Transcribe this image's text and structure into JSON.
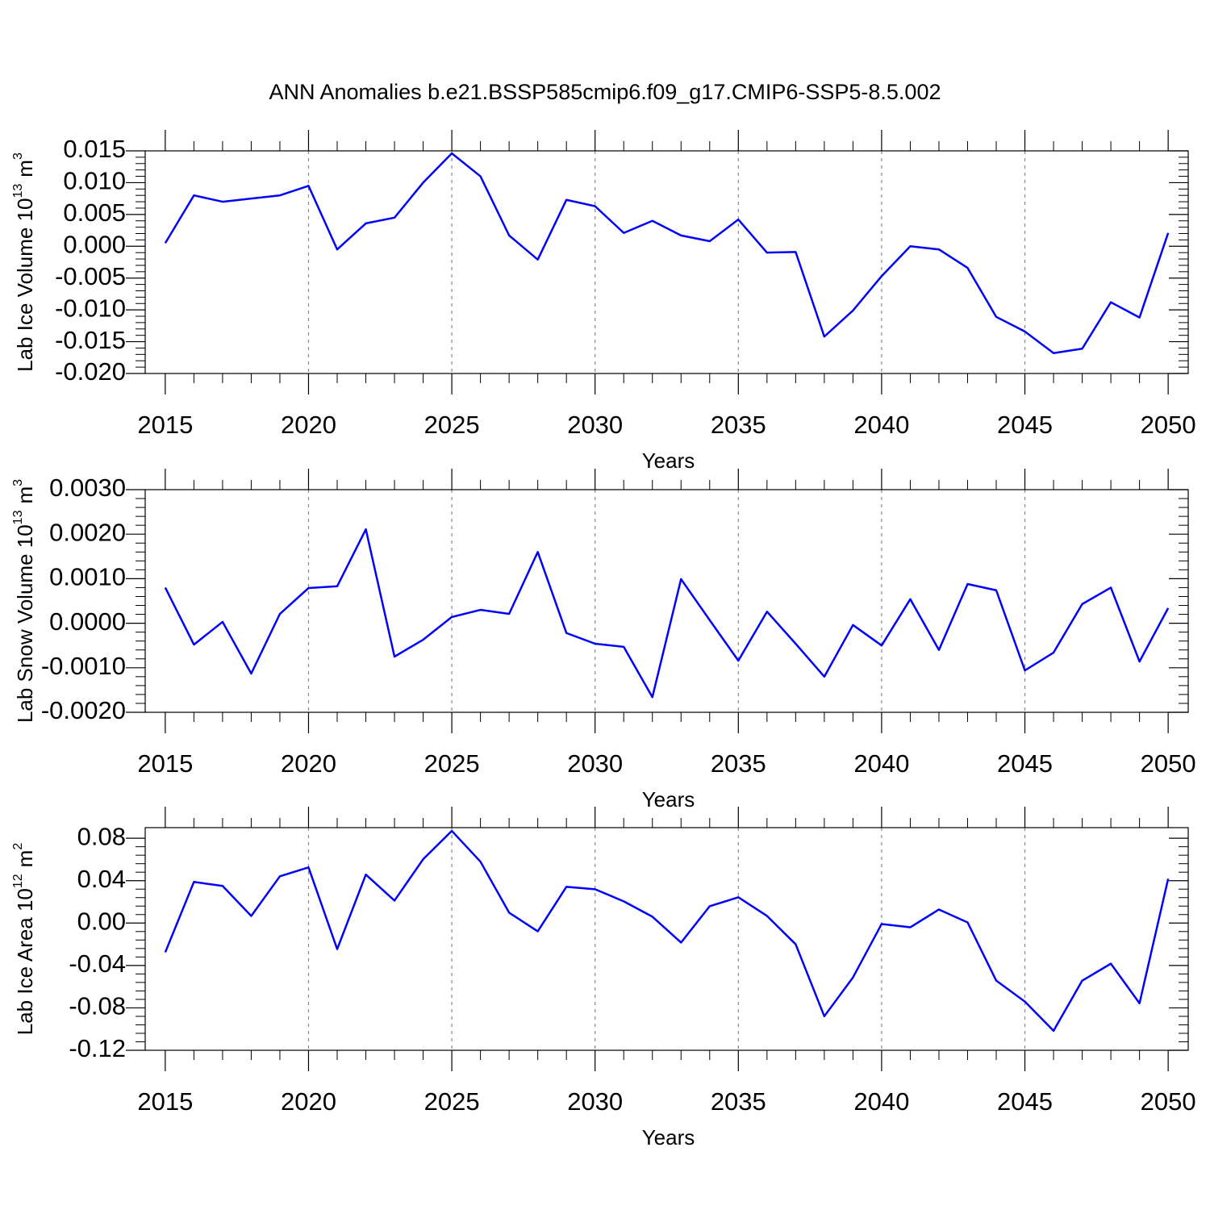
{
  "title": "ANN Anomalies b.e21.BSSP585cmip6.f09_g17.CMIP6-SSP5-8.5.002",
  "chart_data": [
    {
      "type": "line",
      "xlabel": "Years",
      "ylabel": {
        "base": "Lab Ice Volume 10",
        "power": "13",
        "unit": "m",
        "unit_power": "3"
      },
      "x": [
        2015,
        2016,
        2017,
        2018,
        2019,
        2020,
        2021,
        2022,
        2023,
        2024,
        2025,
        2026,
        2027,
        2028,
        2029,
        2030,
        2031,
        2032,
        2033,
        2034,
        2035,
        2036,
        2037,
        2038,
        2039,
        2040,
        2041,
        2042,
        2043,
        2044,
        2045,
        2046,
        2047,
        2048,
        2049,
        2050
      ],
      "series": [
        {
          "color": "#0000ff",
          "values": [
            0.0005,
            0.008,
            0.007,
            0.0075,
            0.008,
            0.0095,
            -0.0005,
            0.0036,
            0.0045,
            0.01,
            0.0146,
            0.011,
            0.0017,
            -0.0021,
            0.0073,
            0.0063,
            0.0021,
            0.004,
            0.0017,
            0.0008,
            0.0042,
            -0.001,
            -0.0009,
            -0.0142,
            -0.0101,
            -0.0047,
            0.0,
            -0.0005,
            -0.0034,
            -0.0111,
            -0.0134,
            -0.0168,
            -0.0161,
            -0.0088,
            -0.0112,
            0.0021
          ]
        }
      ],
      "xlim": [
        2014.3,
        2050.7
      ],
      "xticks": [
        2015,
        2020,
        2025,
        2030,
        2035,
        2040,
        2045,
        2050
      ],
      "ylim": [
        -0.02,
        0.015
      ],
      "yticks": [
        {
          "value": -0.02,
          "label": "-0.020"
        },
        {
          "value": -0.015,
          "label": "-0.015"
        },
        {
          "value": -0.01,
          "label": "-0.010"
        },
        {
          "value": -0.005,
          "label": "-0.005"
        },
        {
          "value": 0,
          "label": "0.000"
        },
        {
          "value": 0.005,
          "label": "0.005"
        },
        {
          "value": 0.01,
          "label": "0.010"
        },
        {
          "value": 0.015,
          "label": "0.015"
        }
      ],
      "grid": "x"
    },
    {
      "type": "line",
      "xlabel": "Years",
      "ylabel": {
        "base": "Lab Snow Volume 10",
        "power": "13",
        "unit": "m",
        "unit_power": "3"
      },
      "x": [
        2015,
        2016,
        2017,
        2018,
        2019,
        2020,
        2021,
        2022,
        2023,
        2024,
        2025,
        2026,
        2027,
        2028,
        2029,
        2030,
        2031,
        2032,
        2033,
        2034,
        2035,
        2036,
        2037,
        2038,
        2039,
        2040,
        2041,
        2042,
        2043,
        2044,
        2045,
        2046,
        2047,
        2048,
        2049,
        2050
      ],
      "series": [
        {
          "color": "#0000ff",
          "values": [
            0.0008,
            -0.00048,
            3e-05,
            -0.00113,
            0.00021,
            0.00079,
            0.00083,
            0.00211,
            -0.00075,
            -0.00037,
            0.00014,
            0.0003,
            0.00021,
            0.0016,
            -0.00022,
            -0.00046,
            -0.00053,
            -0.00166,
            0.00099,
            7e-05,
            -0.00084,
            0.00026,
            -0.00046,
            -0.0012,
            -4e-05,
            -0.0005,
            0.00054,
            -0.0006,
            0.00088,
            0.00074,
            -0.00106,
            -0.00066,
            0.00043,
            0.0008,
            -0.00086,
            0.00034
          ]
        }
      ],
      "xlim": [
        2014.3,
        2050.7
      ],
      "xticks": [
        2015,
        2020,
        2025,
        2030,
        2035,
        2040,
        2045,
        2050
      ],
      "ylim": [
        -0.002,
        0.003
      ],
      "yticks": [
        {
          "value": -0.002,
          "label": "-0.0020"
        },
        {
          "value": -0.001,
          "label": "-0.0010"
        },
        {
          "value": 0,
          "label": "0.0000"
        },
        {
          "value": 0.001,
          "label": "0.0010"
        },
        {
          "value": 0.002,
          "label": "0.0020"
        },
        {
          "value": 0.003,
          "label": "0.0030"
        }
      ],
      "grid": "x"
    },
    {
      "type": "line",
      "xlabel": "Years",
      "ylabel": {
        "base": "Lab Ice Area 10",
        "power": "12",
        "unit": "m",
        "unit_power": "2"
      },
      "x": [
        2015,
        2016,
        2017,
        2018,
        2019,
        2020,
        2021,
        2022,
        2023,
        2024,
        2025,
        2026,
        2027,
        2028,
        2029,
        2030,
        2031,
        2032,
        2033,
        2034,
        2035,
        2036,
        2037,
        2038,
        2039,
        2040,
        2041,
        2042,
        2043,
        2044,
        2045,
        2046,
        2047,
        2048,
        2049,
        2050
      ],
      "series": [
        {
          "color": "#0000ff",
          "values": [
            -0.0276,
            0.0388,
            0.035,
            0.0067,
            0.0441,
            0.0525,
            -0.0246,
            0.0457,
            0.0212,
            0.0602,
            0.0869,
            0.0579,
            0.0098,
            -0.0078,
            0.0342,
            0.0319,
            0.0205,
            0.006,
            -0.0184,
            0.0159,
            0.0243,
            0.0067,
            -0.02,
            -0.0879,
            -0.0513,
            -0.0009,
            -0.004,
            0.0128,
            0.0006,
            -0.0543,
            -0.0741,
            -0.1016,
            -0.0543,
            -0.0383,
            -0.0757,
            0.0418
          ]
        }
      ],
      "xlim": [
        2014.3,
        2050.7
      ],
      "xticks": [
        2015,
        2020,
        2025,
        2030,
        2035,
        2040,
        2045,
        2050
      ],
      "ylim": [
        -0.12,
        0.09
      ],
      "yticks": [
        {
          "value": -0.12,
          "label": "-0.12"
        },
        {
          "value": -0.08,
          "label": "-0.08"
        },
        {
          "value": -0.04,
          "label": "-0.04"
        },
        {
          "value": 0,
          "label": "0.00"
        },
        {
          "value": 0.04,
          "label": "0.04"
        },
        {
          "value": 0.08,
          "label": "0.08"
        }
      ],
      "grid": "x"
    }
  ]
}
